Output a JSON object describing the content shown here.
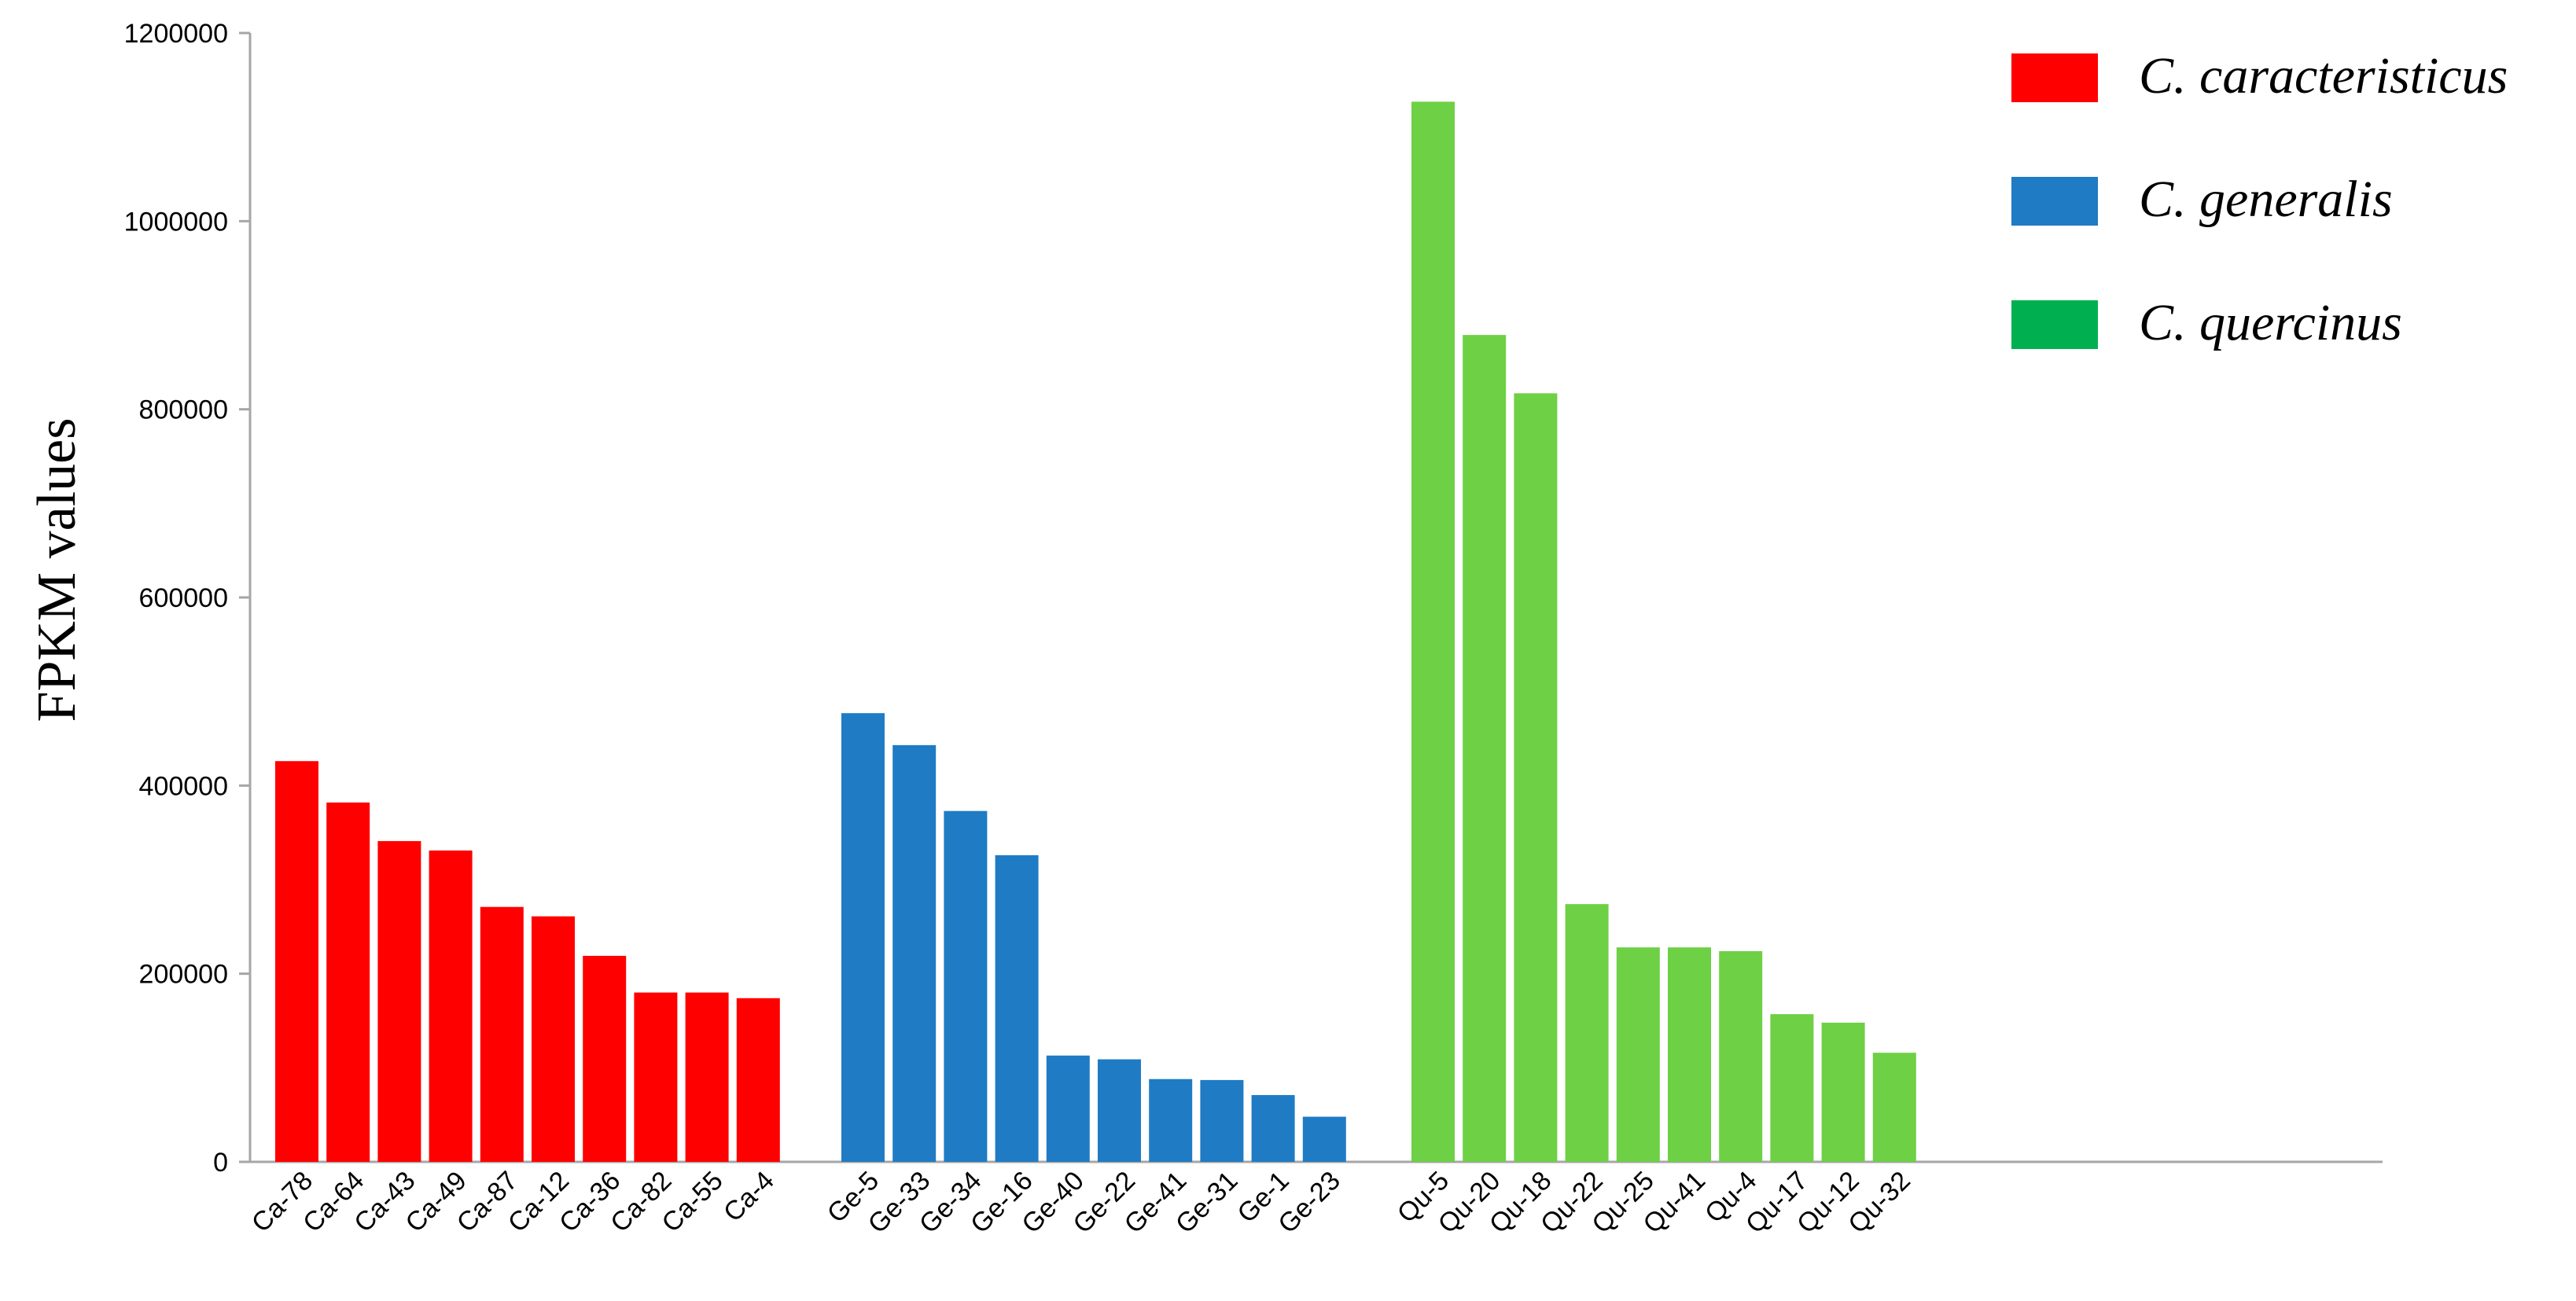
{
  "chart_data": {
    "type": "bar",
    "title": "",
    "xlabel": "",
    "ylabel": "FPKM values",
    "ylim": [
      0,
      1200000
    ],
    "yticks": [
      0,
      200000,
      400000,
      600000,
      800000,
      1000000,
      1200000
    ],
    "yticks_labels": [
      "0",
      "200000",
      "400000",
      "600000",
      "800000",
      "1000000",
      "1200000"
    ],
    "grid": false,
    "legend_position": "top-right",
    "series": [
      {
        "name": "C. caracteristicus",
        "color": "#ff0000",
        "categories": [
          "Ca-78",
          "Ca-64",
          "Ca-43",
          "Ca-49",
          "Ca-87",
          "Ca-12",
          "Ca-36",
          "Ca-82",
          "Ca-55",
          "Ca-4"
        ],
        "values": [
          426000,
          382000,
          341000,
          331000,
          271000,
          261000,
          219000,
          180000,
          180000,
          174000
        ]
      },
      {
        "name": "C. generalis",
        "color": "#1f7bc4",
        "categories": [
          "Ge-5",
          "Ge-33",
          "Ge-34",
          "Ge-16",
          "Ge-40",
          "Ge-22",
          "Ge-41",
          "Ge-31",
          "Ge-1",
          "Ge-23"
        ],
        "values": [
          477000,
          443000,
          373000,
          326000,
          113000,
          109000,
          88000,
          87000,
          71000,
          48000
        ]
      },
      {
        "name": "C. quercinus",
        "color": "#6ed044",
        "legend_color": "#00b050",
        "categories": [
          "Qu-5",
          "Qu-20",
          "Qu-18",
          "Qu-22",
          "Qu-25",
          "Qu-41",
          "Qu-4",
          "Qu-17",
          "Qu-12",
          "Qu-32"
        ],
        "values": [
          1127000,
          879000,
          817000,
          274000,
          228000,
          228000,
          224000,
          157000,
          148000,
          116000
        ]
      }
    ]
  }
}
